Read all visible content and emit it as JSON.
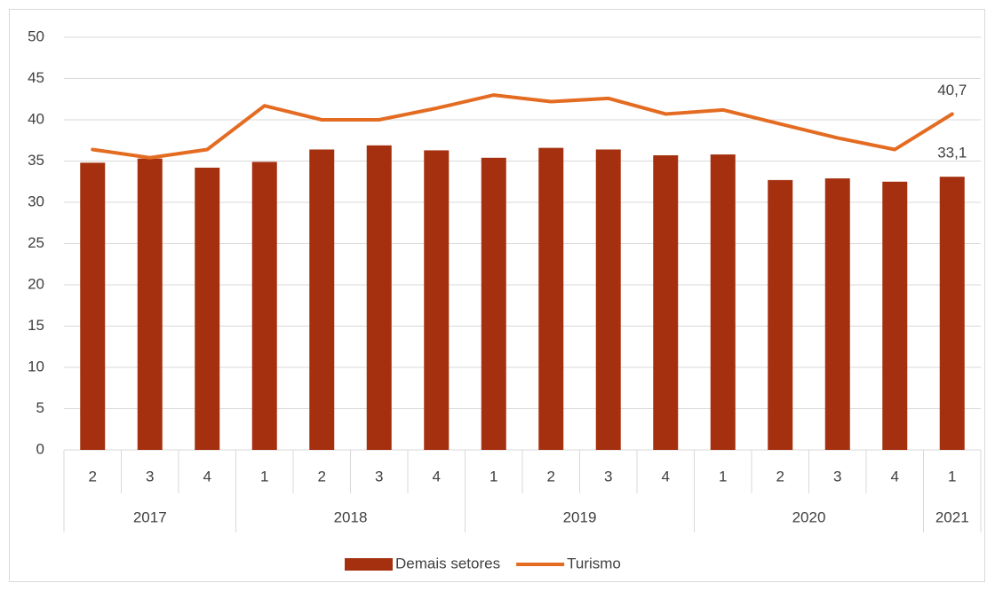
{
  "chart_data": {
    "type": "bar-line",
    "groups": [
      {
        "name": "2017",
        "categories": [
          "2",
          "3",
          "4"
        ]
      },
      {
        "name": "2018",
        "categories": [
          "1",
          "2",
          "3",
          "4"
        ]
      },
      {
        "name": "2019",
        "categories": [
          "1",
          "2",
          "3",
          "4"
        ]
      },
      {
        "name": "2020",
        "categories": [
          "1",
          "2",
          "3",
          "4"
        ]
      },
      {
        "name": "2021",
        "categories": [
          "1"
        ]
      }
    ],
    "series": [
      {
        "name": "Demais setores",
        "type": "bar",
        "color": "#a5300f",
        "values": [
          34.8,
          35.3,
          34.2,
          34.9,
          36.4,
          36.9,
          36.3,
          35.4,
          36.6,
          36.4,
          35.7,
          35.8,
          32.7,
          32.9,
          32.5,
          33.1
        ],
        "value_labels": [
          null,
          null,
          null,
          null,
          null,
          null,
          null,
          null,
          null,
          null,
          null,
          null,
          null,
          null,
          null,
          "33,1"
        ]
      },
      {
        "name": "Turismo",
        "type": "line",
        "color": "#e46c22",
        "values": [
          36.4,
          35.4,
          36.4,
          41.7,
          40.0,
          40.0,
          41.4,
          43.0,
          42.2,
          42.6,
          40.7,
          41.2,
          39.5,
          37.8,
          36.4,
          40.7
        ],
        "value_labels": [
          null,
          null,
          null,
          null,
          null,
          null,
          null,
          null,
          null,
          null,
          null,
          null,
          null,
          null,
          null,
          "40,7"
        ]
      }
    ],
    "ylim": [
      0,
      50
    ],
    "yticks": [
      0,
      5,
      10,
      15,
      20,
      25,
      30,
      35,
      40,
      45,
      50
    ],
    "grid": true,
    "legend": "bottom"
  }
}
